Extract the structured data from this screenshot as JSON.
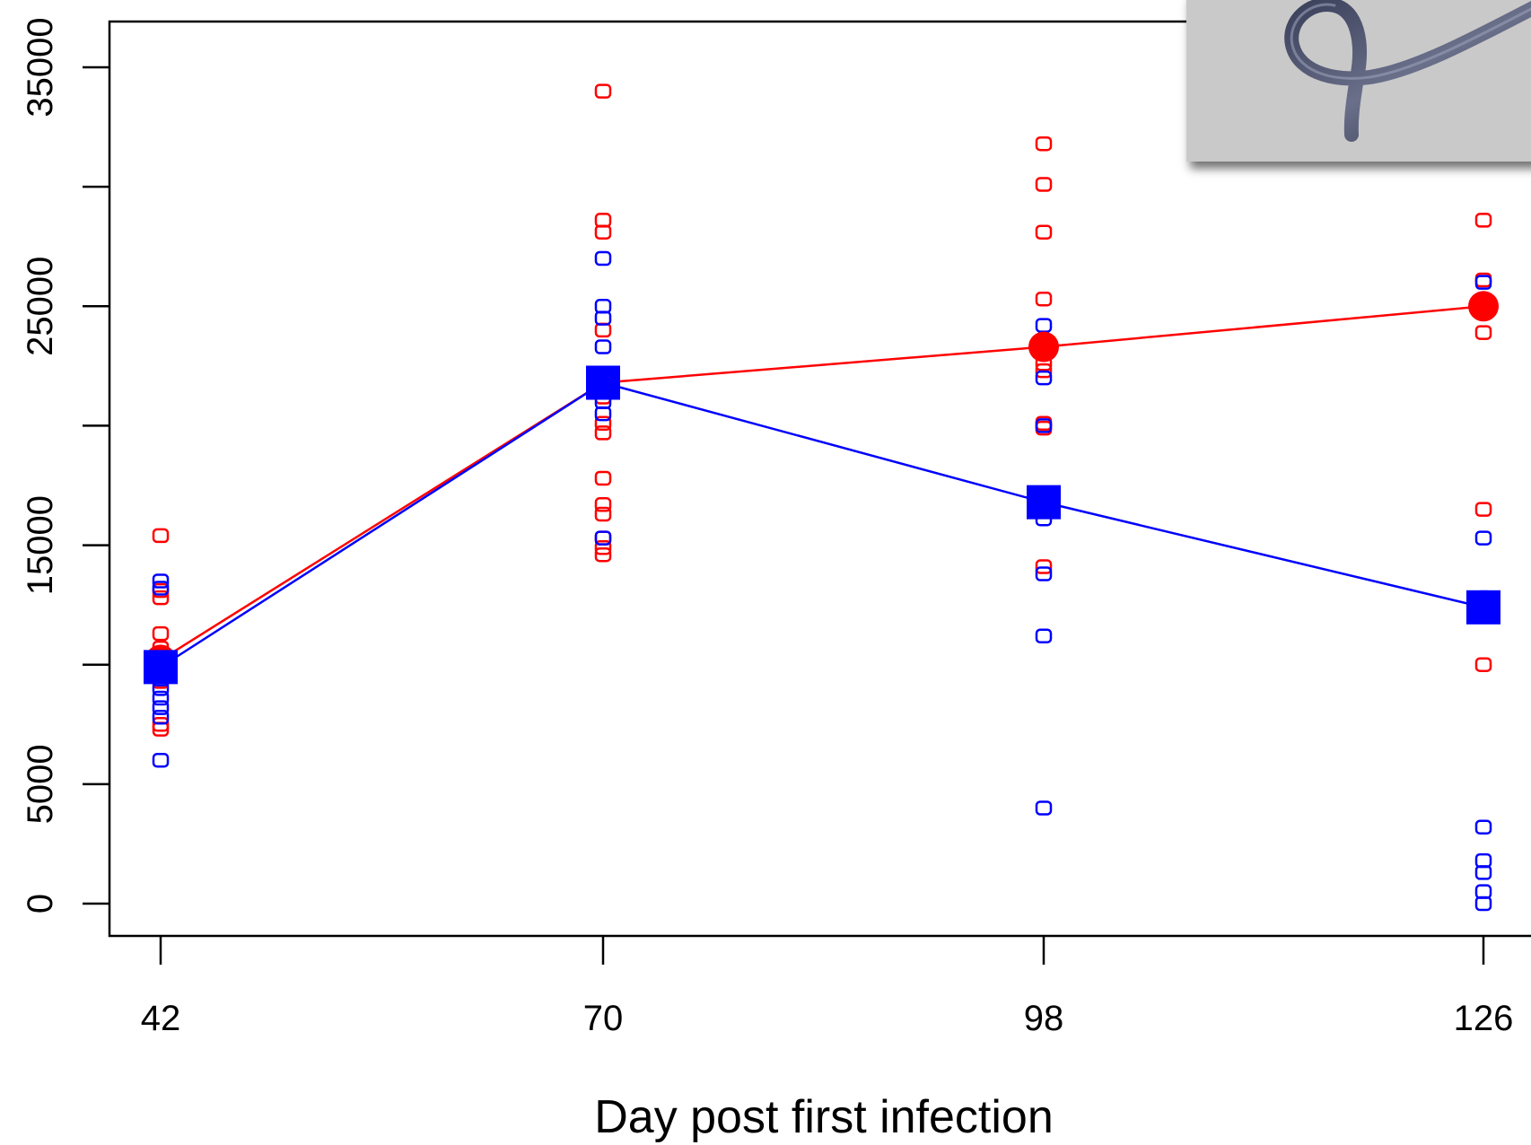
{
  "chart_data": {
    "type": "scatter",
    "title": "",
    "xlabel": "Day post first infection",
    "ylabel": "",
    "x_categories": [
      42,
      70,
      98,
      126
    ],
    "xtick_labels": [
      "42",
      "70",
      "98",
      "126"
    ],
    "ylim": [
      -1000,
      37000
    ],
    "yticks": [
      0,
      5000,
      15000,
      25000,
      35000
    ],
    "ytick_labels": [
      "0",
      "5000",
      "15000",
      "25000",
      "35000"
    ],
    "grid": false,
    "legend": "none",
    "series": [
      {
        "color": "#ff0000",
        "mean_marker": "circle",
        "means": [
          10200,
          21800,
          23300,
          25000
        ],
        "points": [
          [
            15400,
            13100,
            12800,
            11300,
            10700,
            10100,
            9700,
            9300,
            7500,
            7300
          ],
          [
            34000,
            28600,
            28100,
            24000,
            22100,
            21200,
            20100,
            19700,
            17800,
            16700,
            16300,
            15300,
            14900,
            14600
          ],
          [
            31800,
            30100,
            28100,
            25300,
            23100,
            22600,
            22300,
            20100,
            19900,
            14100
          ],
          [
            28600,
            26100,
            25000,
            24800,
            23900,
            16500,
            10000
          ]
        ]
      },
      {
        "color": "#0000ff",
        "mean_marker": "square",
        "means": [
          9900,
          21800,
          16800,
          12400
        ],
        "points": [
          [
            13500,
            13200,
            10200,
            9800,
            9400,
            9000,
            8600,
            8200,
            7800,
            6000
          ],
          [
            27000,
            25000,
            24500,
            23300,
            22000,
            21000,
            20500,
            15300
          ],
          [
            24200,
            23600,
            22000,
            20000,
            16600,
            16100,
            13800,
            11200,
            4000
          ],
          [
            26000,
            15300,
            12800,
            12500,
            3200,
            1800,
            1300,
            500,
            0
          ]
        ]
      }
    ]
  },
  "inset": {
    "description_icon": "coiled-worm-photo-icon"
  }
}
